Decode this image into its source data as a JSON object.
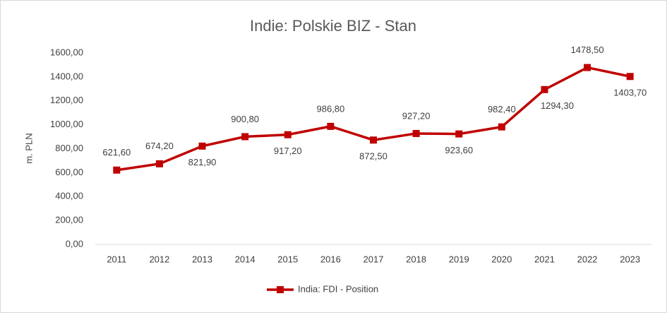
{
  "chart_data": {
    "type": "line",
    "title": "Indie: Polskie BIZ - Stan",
    "y_label": "m. PLN",
    "categories": [
      "2011",
      "2012",
      "2013",
      "2014",
      "2015",
      "2016",
      "2017",
      "2018",
      "2019",
      "2020",
      "2021",
      "2022",
      "2023"
    ],
    "series": [
      {
        "name": "India: FDI - Position",
        "color": "#c00000",
        "values": [
          621.6,
          674.2,
          821.9,
          900.8,
          917.2,
          986.8,
          872.5,
          927.2,
          923.6,
          982.4,
          1294.3,
          1478.5,
          1403.7
        ],
        "value_labels": [
          "621,60",
          "674,20",
          "821,90",
          "900,80",
          "917,20",
          "986,80",
          "872,50",
          "927,20",
          "923,60",
          "982,40",
          "1294,30",
          "1478,50",
          "1403,70"
        ]
      }
    ],
    "ylim": [
      0,
      1600
    ],
    "yticks": [
      {
        "value": 0,
        "label": "0,00"
      },
      {
        "value": 200,
        "label": "200,00"
      },
      {
        "value": 400,
        "label": "400,00"
      },
      {
        "value": 600,
        "label": "600,00"
      },
      {
        "value": 800,
        "label": "800,00"
      },
      {
        "value": 1000,
        "label": "1000,00"
      },
      {
        "value": 1200,
        "label": "1200,00"
      },
      {
        "value": 1400,
        "label": "1400,00"
      },
      {
        "value": 1600,
        "label": "1600,00"
      }
    ],
    "grid": false,
    "legend": "bottom"
  }
}
